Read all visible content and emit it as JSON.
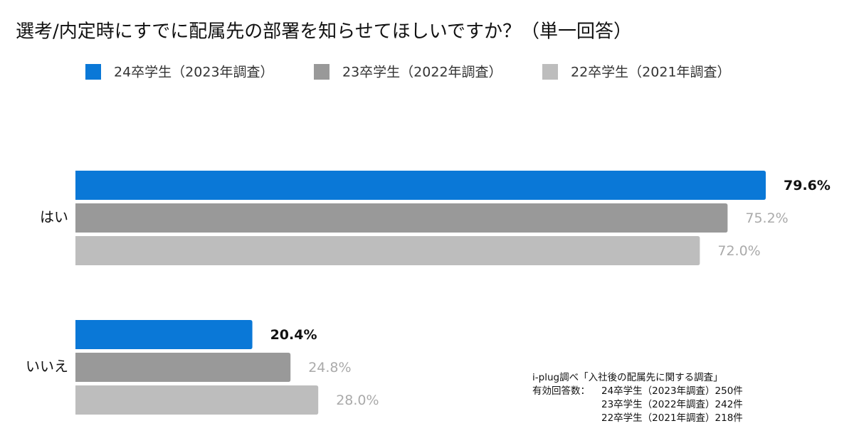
{
  "chart_data": {
    "type": "bar",
    "orientation": "horizontal",
    "title": "選考/内定時にすでに配属先の部署を知らせてほしいですか？（単一回答）",
    "categories": [
      "はい",
      "いいえ"
    ],
    "series": [
      {
        "name": "24卒学生（2023年調査）",
        "color": "#0a78d7",
        "values": [
          79.6,
          20.4
        ],
        "value_labels": [
          "79.6%",
          "20.4%"
        ]
      },
      {
        "name": "23卒学生（2022年調査）",
        "color": "#999999",
        "values": [
          75.2,
          24.8
        ],
        "value_labels": [
          "75.2%",
          "24.8%"
        ]
      },
      {
        "name": "22卒学生（2021年調査）",
        "color": "#bdbdbd",
        "values": [
          72.0,
          28.0
        ],
        "value_labels": [
          "72.0%",
          "28.0%"
        ]
      }
    ],
    "note": {
      "source": "i-plug調べ「入社後の配属先に関する調査」",
      "label": "有効回答数：",
      "lines": [
        "24卒学生（2023年調査）250件",
        "23卒学生（2022年調査）242件",
        "22卒学生（2021年調査）218件"
      ]
    }
  }
}
